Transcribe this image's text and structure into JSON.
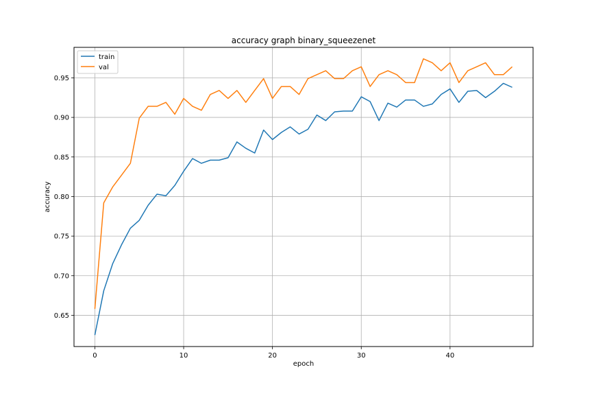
{
  "chart_data": {
    "type": "line",
    "title": "accuracy graph binary_squeezenet",
    "xlabel": "epoch",
    "ylabel": "accuracy",
    "xlim": [
      -2.35,
      49.35
    ],
    "ylim": [
      0.6105,
      0.9885
    ],
    "xticks": [
      0,
      10,
      20,
      30,
      40
    ],
    "yticks": [
      0.65,
      0.7,
      0.75,
      0.8,
      0.85,
      0.9,
      0.95
    ],
    "ytick_labels": [
      "0.65",
      "0.70",
      "0.75",
      "0.80",
      "0.85",
      "0.90",
      "0.95"
    ],
    "grid": true,
    "legend_position": "top-left",
    "x": [
      0,
      1,
      2,
      3,
      4,
      5,
      6,
      7,
      8,
      9,
      10,
      11,
      12,
      13,
      14,
      15,
      16,
      17,
      18,
      19,
      20,
      21,
      22,
      23,
      24,
      25,
      26,
      27,
      28,
      29,
      30,
      31,
      32,
      33,
      34,
      35,
      36,
      37,
      38,
      39,
      40,
      41,
      42,
      43,
      44,
      45,
      46,
      47
    ],
    "series": [
      {
        "name": "train",
        "color": "#1f77b4",
        "values": [
          0.625,
          0.681,
          0.715,
          0.739,
          0.76,
          0.77,
          0.789,
          0.803,
          0.801,
          0.814,
          0.832,
          0.848,
          0.842,
          0.846,
          0.846,
          0.849,
          0.869,
          0.861,
          0.855,
          0.884,
          0.872,
          0.881,
          0.888,
          0.879,
          0.885,
          0.903,
          0.896,
          0.907,
          0.908,
          0.908,
          0.926,
          0.92,
          0.896,
          0.918,
          0.913,
          0.922,
          0.922,
          0.914,
          0.917,
          0.929,
          0.936,
          0.919,
          0.933,
          0.934,
          0.925,
          0.933,
          0.943,
          0.938
        ]
      },
      {
        "name": "val",
        "color": "#ff7f0e",
        "values": [
          0.658,
          0.792,
          0.812,
          0.827,
          0.842,
          0.899,
          0.914,
          0.914,
          0.919,
          0.904,
          0.924,
          0.914,
          0.909,
          0.929,
          0.934,
          0.924,
          0.934,
          0.919,
          0.934,
          0.949,
          0.924,
          0.939,
          0.939,
          0.929,
          0.949,
          0.954,
          0.959,
          0.949,
          0.949,
          0.959,
          0.964,
          0.939,
          0.954,
          0.959,
          0.954,
          0.944,
          0.944,
          0.974,
          0.969,
          0.959,
          0.969,
          0.944,
          0.959,
          0.964,
          0.969,
          0.954,
          0.954,
          0.964
        ]
      }
    ]
  }
}
